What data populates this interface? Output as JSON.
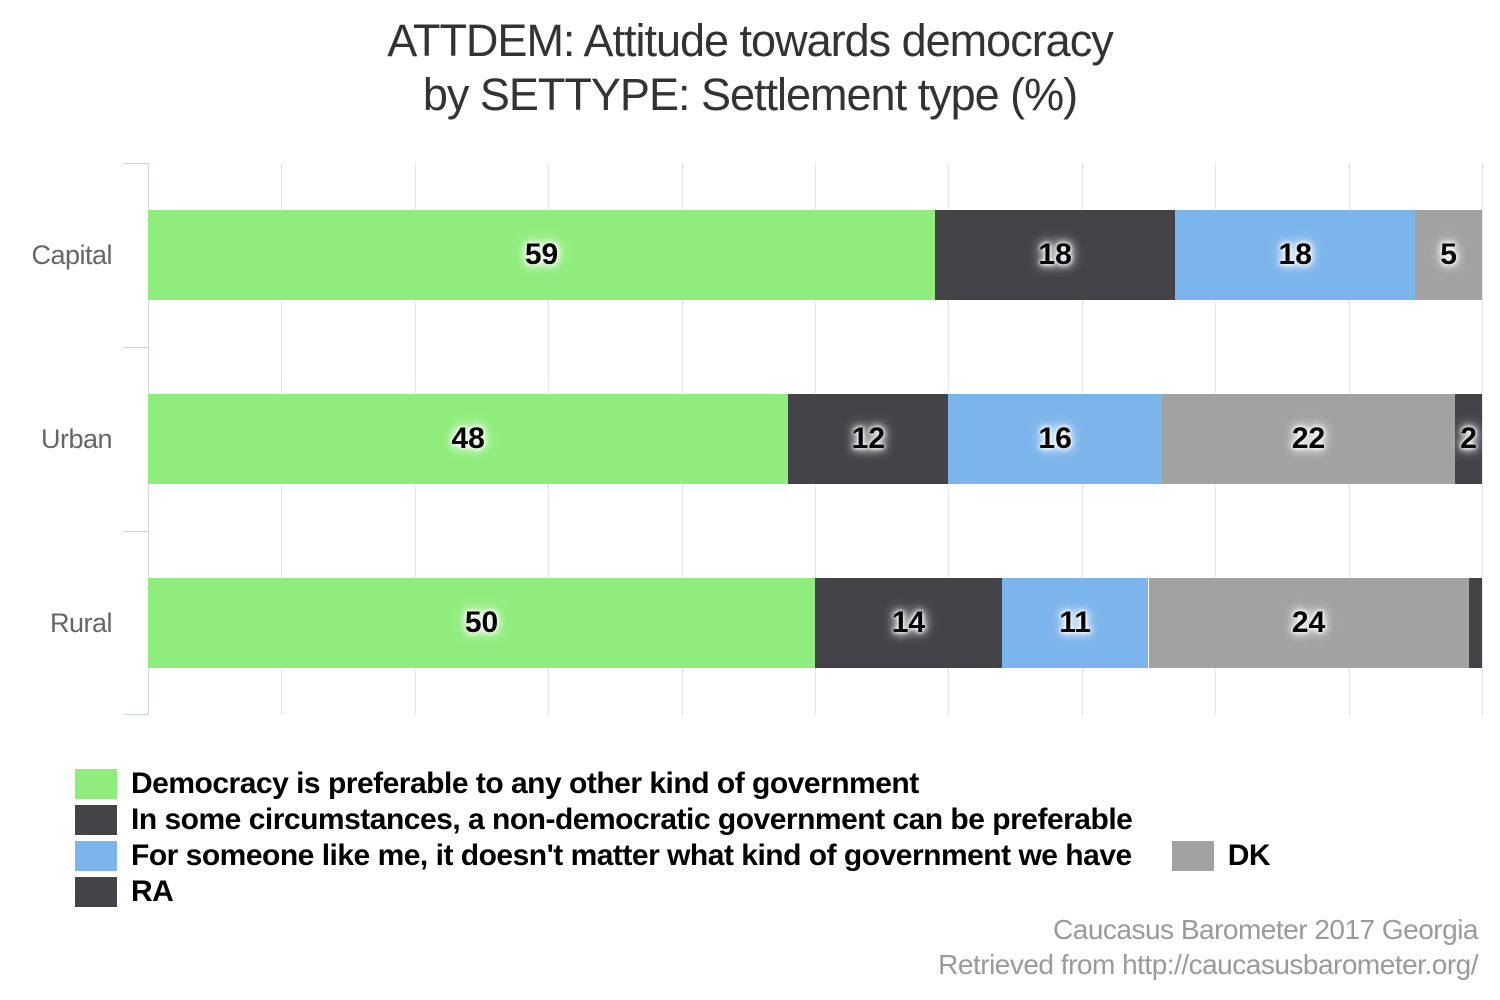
{
  "title": {
    "line1": "ATTDEM: Attitude towards democracy",
    "line2": "by SETTYPE: Settlement type (%)"
  },
  "chart_data": {
    "type": "bar",
    "orientation": "horizontal",
    "stacked": true,
    "title": "ATTDEM: Attitude towards democracy by SETTYPE: Settlement type (%)",
    "categories": [
      "Capital",
      "Urban",
      "Rural"
    ],
    "series": [
      {
        "name": "Democracy is preferable to any other kind of government",
        "color": "#90ed7d",
        "values": [
          59,
          48,
          50
        ]
      },
      {
        "name": "In some circumstances, a non-democratic government can be preferable",
        "color": "#434348",
        "values": [
          18,
          12,
          14
        ]
      },
      {
        "name": "For someone like me, it doesn't matter what kind of government we have",
        "color": "#7cb5ec",
        "values": [
          18,
          16,
          11
        ]
      },
      {
        "name": "DK",
        "color": "#a2a2a2",
        "values": [
          5,
          22,
          24
        ]
      },
      {
        "name": "RA",
        "color": "#434348",
        "values": [
          0,
          2,
          1
        ]
      }
    ],
    "xlim": [
      0,
      100
    ],
    "gridline_step": 10,
    "grid": true,
    "legend_position": "bottom-left",
    "min_label_value": 2,
    "data_labels_shown": {
      "Capital": [
        59,
        18,
        18,
        5
      ],
      "Urban": [
        48,
        12,
        16,
        22,
        2
      ],
      "Rural": [
        50,
        14,
        11,
        24
      ]
    }
  },
  "colors": {
    "axis": "#ccd6eb",
    "gridline": "#e6e6e6",
    "title_text": "#333333",
    "category_label": "#666666",
    "data_label": "#000000",
    "footer_text": "#9a9a9a"
  },
  "footer": {
    "line1": "Caucasus Barometer 2017 Georgia",
    "line2": "Retrieved from http://caucasusbarometer.org/"
  }
}
